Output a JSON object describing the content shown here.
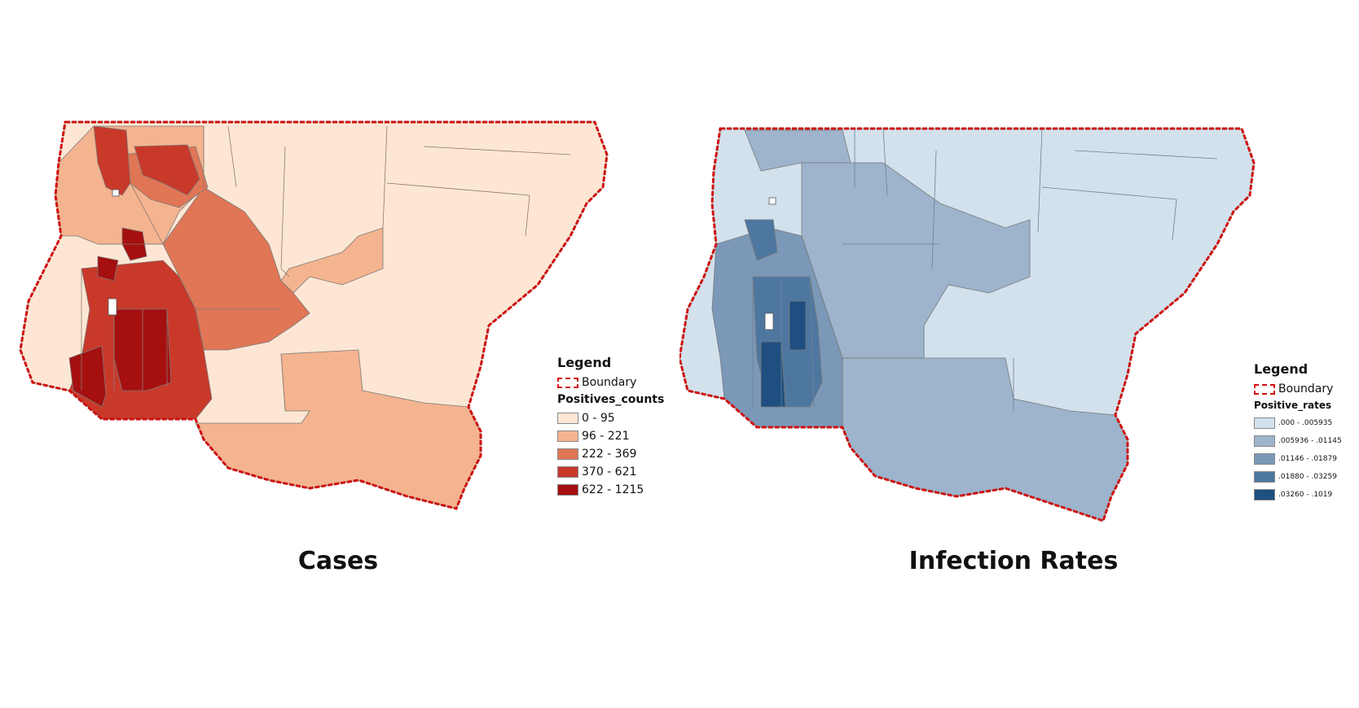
{
  "maps": [
    {
      "title": "Cases",
      "legend": {
        "heading": "Legend",
        "boundary_label": "Boundary",
        "field_name": "Positives_counts",
        "classes": [
          {
            "label": "0 - 95",
            "color": "#fde7d4"
          },
          {
            "label": "96 - 221",
            "color": "#f4b48f"
          },
          {
            "label": "222 - 369",
            "color": "#e07656"
          },
          {
            "label": "370 - 621",
            "color": "#c9392a"
          },
          {
            "label": "622 - 1215",
            "color": "#a50f0f"
          }
        ]
      },
      "boundary_color": "#d01010"
    },
    {
      "title": "Infection Rates",
      "legend": {
        "heading": "Legend",
        "boundary_label": "Boundary",
        "field_name": "Positive_rates",
        "classes": [
          {
            "label": ".000 - .005935",
            "color": "#d2e1ec"
          },
          {
            "label": ".005936 - .01145",
            "color": "#9db4cc"
          },
          {
            "label": ".01146 - .01879",
            "color": "#7b98b8"
          },
          {
            "label": ".01880 - .03259",
            "color": "#4e77a0"
          },
          {
            "label": ".03260 - .1019",
            "color": "#1e4f80"
          }
        ]
      },
      "boundary_color": "#d01010"
    }
  ]
}
